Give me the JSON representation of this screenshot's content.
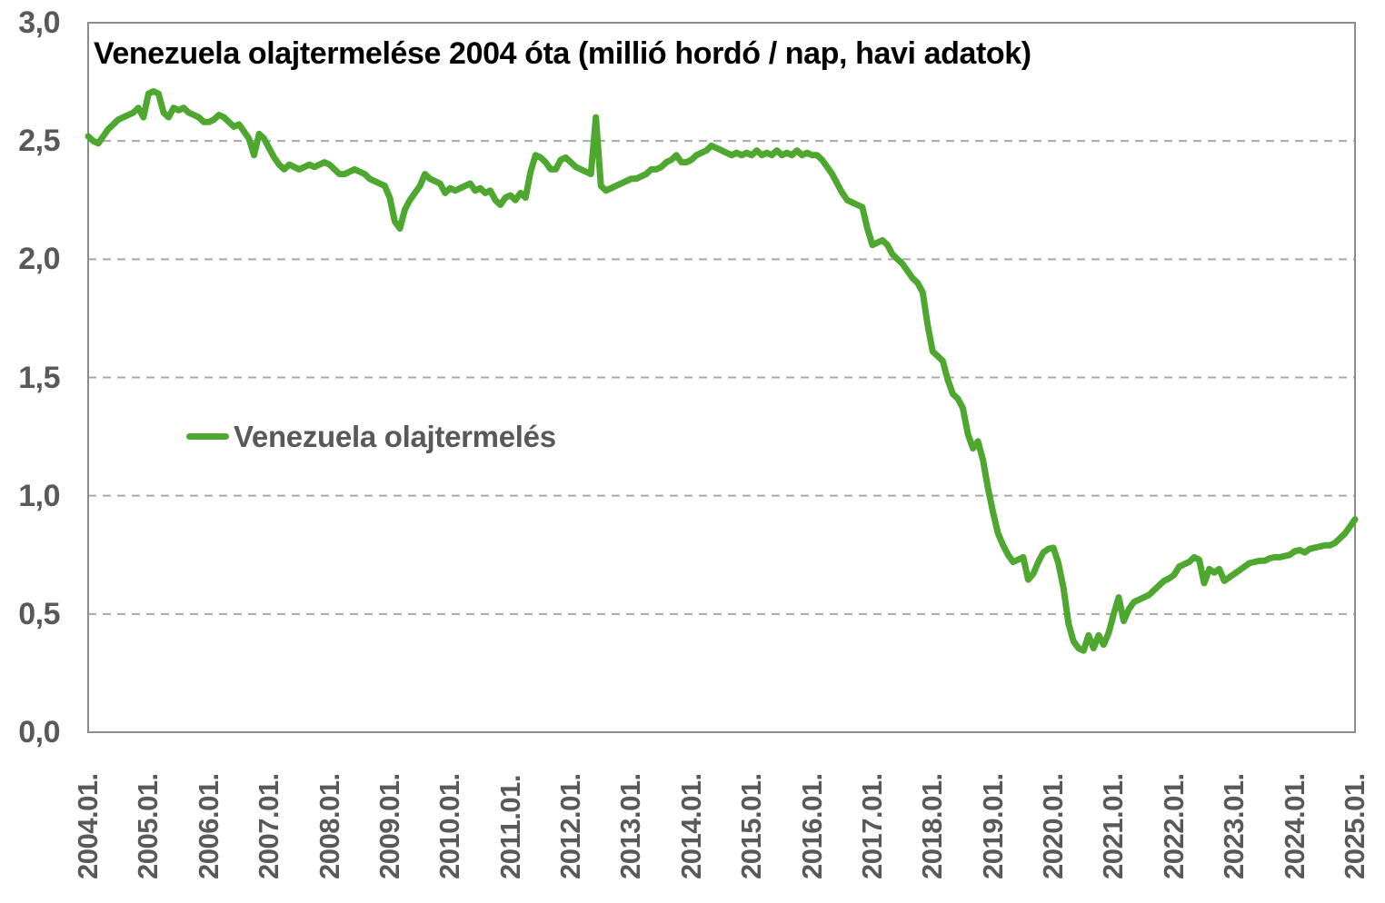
{
  "chart": {
    "title": "Venezuela olajtermelése 2004 óta (millió hordó / nap, havi adatok)",
    "legend_label": "Venezuela olajtermelés"
  },
  "colors": {
    "line": "#4EA72E",
    "grid": "#A8A8A8",
    "axis_border": "#8C8C8C",
    "tick_label": "#595959",
    "title": "#000000"
  },
  "chart_data": {
    "type": "line",
    "title": "Venezuela olajtermelése 2004 óta (millió hordó / nap, havi adatok)",
    "xlabel": "",
    "ylabel": "",
    "ylim": [
      0,
      3
    ],
    "grid": "horizontal-dashed",
    "legend_position": "inside-left-middle",
    "x_start": "2004.01",
    "x_step": "1 month",
    "x_end": "2025.01",
    "x_tick_labels": [
      "2004.01.",
      "2005.01.",
      "2006.01.",
      "2007.01.",
      "2008.01.",
      "2009.01.",
      "2010.01.",
      "2011.01.",
      "2012.01.",
      "2013.01.",
      "2014.01.",
      "2015.01.",
      "2016.01.",
      "2017.01.",
      "2018.01.",
      "2019.01.",
      "2020.01.",
      "2021.01.",
      "2022.01.",
      "2023.01.",
      "2024.01.",
      "2025.01."
    ],
    "y_ticks": [
      {
        "value": 0.0,
        "label": "0,0"
      },
      {
        "value": 0.5,
        "label": "0,5"
      },
      {
        "value": 1.0,
        "label": "1,0"
      },
      {
        "value": 1.5,
        "label": "1,5"
      },
      {
        "value": 2.0,
        "label": "2,0"
      },
      {
        "value": 2.5,
        "label": "2,5"
      },
      {
        "value": 3.0,
        "label": "3,0"
      }
    ],
    "series": [
      {
        "name": "Venezuela olajtermelés",
        "color": "#4EA72E",
        "values": [
          2.52,
          2.5,
          2.49,
          2.52,
          2.55,
          2.57,
          2.59,
          2.6,
          2.61,
          2.62,
          2.64,
          2.6,
          2.7,
          2.71,
          2.7,
          2.62,
          2.6,
          2.64,
          2.63,
          2.64,
          2.62,
          2.61,
          2.6,
          2.58,
          2.58,
          2.59,
          2.61,
          2.6,
          2.58,
          2.56,
          2.57,
          2.54,
          2.51,
          2.44,
          2.53,
          2.51,
          2.47,
          2.43,
          2.4,
          2.38,
          2.4,
          2.39,
          2.38,
          2.39,
          2.4,
          2.39,
          2.4,
          2.41,
          2.4,
          2.38,
          2.36,
          2.36,
          2.37,
          2.38,
          2.37,
          2.36,
          2.34,
          2.33,
          2.32,
          2.31,
          2.26,
          2.16,
          2.13,
          2.21,
          2.25,
          2.28,
          2.31,
          2.36,
          2.34,
          2.33,
          2.32,
          2.28,
          2.3,
          2.29,
          2.3,
          2.31,
          2.32,
          2.29,
          2.3,
          2.28,
          2.29,
          2.25,
          2.23,
          2.26,
          2.27,
          2.25,
          2.28,
          2.26,
          2.37,
          2.44,
          2.43,
          2.41,
          2.38,
          2.38,
          2.42,
          2.43,
          2.41,
          2.39,
          2.38,
          2.37,
          2.36,
          2.6,
          2.31,
          2.29,
          2.3,
          2.31,
          2.32,
          2.33,
          2.34,
          2.34,
          2.35,
          2.36,
          2.38,
          2.38,
          2.39,
          2.41,
          2.42,
          2.44,
          2.41,
          2.41,
          2.42,
          2.44,
          2.45,
          2.46,
          2.48,
          2.47,
          2.46,
          2.45,
          2.44,
          2.45,
          2.44,
          2.45,
          2.44,
          2.46,
          2.44,
          2.45,
          2.44,
          2.46,
          2.44,
          2.45,
          2.44,
          2.46,
          2.44,
          2.45,
          2.44,
          2.44,
          2.42,
          2.39,
          2.36,
          2.32,
          2.28,
          2.25,
          2.24,
          2.23,
          2.22,
          2.13,
          2.06,
          2.07,
          2.08,
          2.06,
          2.02,
          2.0,
          1.98,
          1.95,
          1.92,
          1.9,
          1.86,
          1.72,
          1.61,
          1.59,
          1.57,
          1.49,
          1.43,
          1.41,
          1.37,
          1.26,
          1.2,
          1.23,
          1.15,
          1.03,
          0.93,
          0.84,
          0.79,
          0.75,
          0.72,
          0.73,
          0.74,
          0.645,
          0.67,
          0.72,
          0.76,
          0.775,
          0.78,
          0.715,
          0.61,
          0.46,
          0.385,
          0.355,
          0.345,
          0.41,
          0.355,
          0.41,
          0.37,
          0.42,
          0.5,
          0.57,
          0.47,
          0.52,
          0.55,
          0.56,
          0.57,
          0.58,
          0.6,
          0.62,
          0.64,
          0.65,
          0.665,
          0.7,
          0.71,
          0.72,
          0.74,
          0.73,
          0.63,
          0.69,
          0.675,
          0.69,
          0.64,
          0.655,
          0.67,
          0.685,
          0.7,
          0.715,
          0.72,
          0.725,
          0.725,
          0.735,
          0.74,
          0.74,
          0.745,
          0.75,
          0.765,
          0.77,
          0.76,
          0.775,
          0.78,
          0.785,
          0.79,
          0.79,
          0.8,
          0.82,
          0.84,
          0.87,
          0.9
        ]
      }
    ]
  }
}
